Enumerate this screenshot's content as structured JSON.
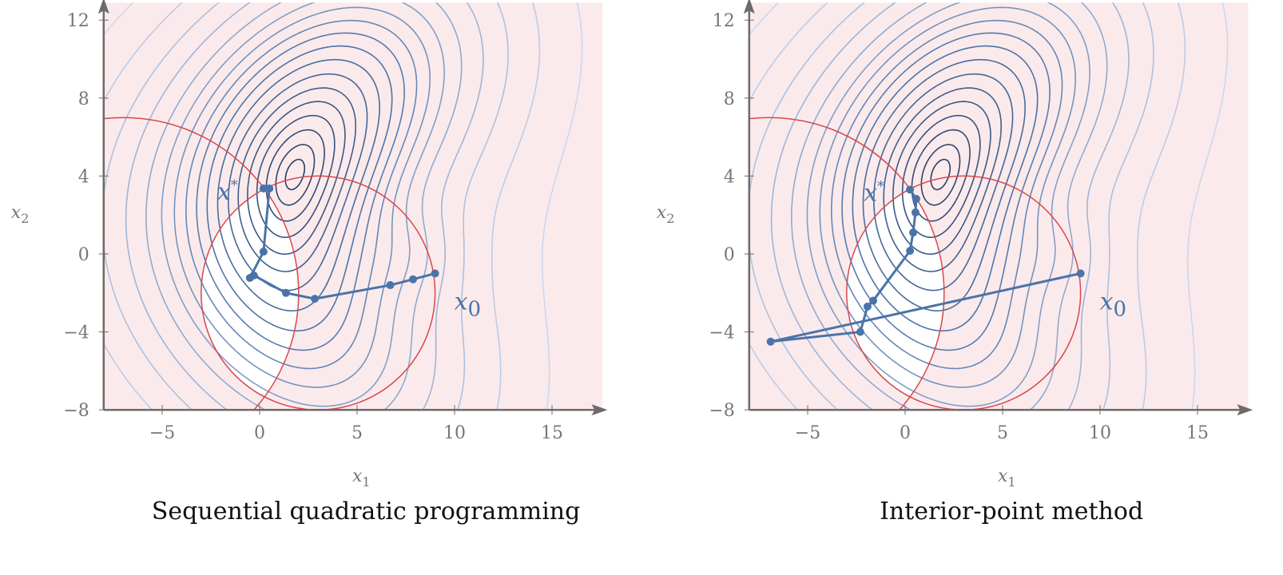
{
  "chart_data": [
    {
      "type": "contour",
      "title": "Sequential quadratic programming",
      "xlabel": "x1",
      "ylabel": "x2",
      "xlim": [
        -8,
        17.6
      ],
      "ylim": [
        -8,
        12.9
      ],
      "xticks": [
        -5,
        0,
        5,
        10,
        15
      ],
      "yticks": [
        -8,
        -4,
        0,
        4,
        8,
        12
      ],
      "grid": false,
      "constraints": [
        {
          "type": "circle",
          "center": [
            3,
            -2
          ],
          "radius": 6
        },
        {
          "type": "circle",
          "center": [
            -7,
            -2
          ],
          "radius": 9
        }
      ],
      "feasible_fill": "#ffffff",
      "infeasible_fill": "#fbeaec",
      "constraint_color": "#d9464a",
      "path_color": "#4a74a8",
      "path": [
        [
          9.0,
          -1.0
        ],
        [
          7.87,
          -1.3
        ],
        [
          6.7,
          -1.6
        ],
        [
          2.83,
          -2.3
        ],
        [
          1.35,
          -2.0
        ],
        [
          -0.3,
          -1.1
        ],
        [
          -0.5,
          -1.23
        ],
        [
          0.2,
          0.12
        ],
        [
          0.5,
          3.36
        ],
        [
          0.2,
          3.36
        ]
      ],
      "annotations": [
        {
          "text": "x*",
          "at": [
            0.2,
            3.36
          ]
        },
        {
          "text": "x0",
          "at": [
            9.0,
            -1.0
          ]
        }
      ]
    },
    {
      "type": "contour",
      "title": "Interior-point method",
      "xlabel": "x1",
      "ylabel": "x2",
      "xlim": [
        -8,
        17.6
      ],
      "ylim": [
        -8,
        12.9
      ],
      "xticks": [
        -5,
        0,
        5,
        10,
        15
      ],
      "yticks": [
        -8,
        -4,
        0,
        4,
        8,
        12
      ],
      "grid": false,
      "constraints": [
        {
          "type": "circle",
          "center": [
            3,
            -2
          ],
          "radius": 6
        },
        {
          "type": "circle",
          "center": [
            -7,
            -2
          ],
          "radius": 9
        }
      ],
      "feasible_fill": "#ffffff",
      "infeasible_fill": "#fbeaec",
      "constraint_color": "#d9464a",
      "path_color": "#4a74a8",
      "path": [
        [
          9.0,
          -1.0
        ],
        [
          -6.9,
          -4.5
        ],
        [
          -2.3,
          -4.0
        ],
        [
          -1.93,
          -2.7
        ],
        [
          -1.64,
          -2.4
        ],
        [
          0.25,
          0.16
        ],
        [
          0.41,
          1.1
        ],
        [
          0.53,
          2.13
        ],
        [
          0.57,
          2.83
        ],
        [
          0.25,
          3.3
        ]
      ],
      "annotations": [
        {
          "text": "x*",
          "at": [
            0.25,
            3.3
          ]
        },
        {
          "text": "x0",
          "at": [
            9.0,
            -1.0
          ]
        }
      ]
    }
  ]
}
